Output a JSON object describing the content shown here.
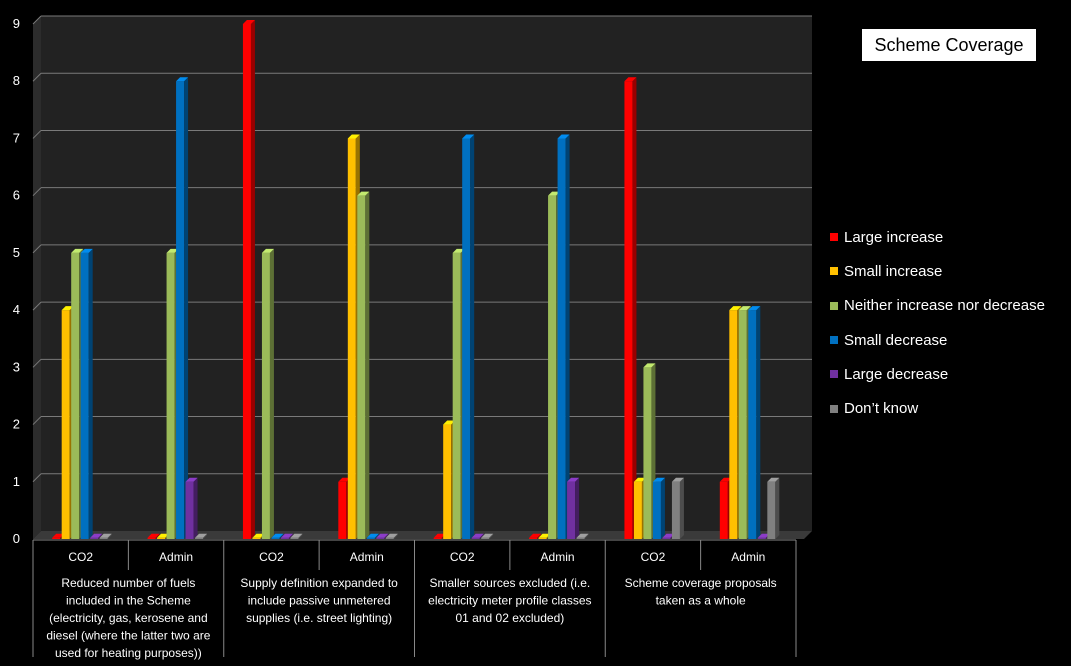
{
  "chart_data": {
    "type": "bar",
    "title": "Scheme Coverage",
    "ylim": [
      0,
      9
    ],
    "yticks": [
      "0",
      "1",
      "2",
      "3",
      "4",
      "5",
      "6",
      "7",
      "8",
      "9"
    ],
    "categories": [
      "CO2",
      "Admin",
      "CO2",
      "Admin",
      "CO2",
      "Admin",
      "CO2",
      "Admin"
    ],
    "groups": [
      "Reduced number of fuels included in the Scheme (electricity, gas, kerosene and diesel (where the latter two are used for heating purposes))",
      "Supply definition expanded to include passive unmetered supplies (i.e. street lighting)",
      "Smaller sources excluded (i.e. electricity meter profile classes 01 and 02 excluded)",
      "Scheme coverage proposals taken as a whole"
    ],
    "group_lines": [
      [
        "Reduced number of fuels",
        "included in the Scheme",
        "(electricity, gas, kerosene and",
        "diesel (where the latter two are",
        "used for heating purposes))"
      ],
      [
        "Supply definition expanded to",
        "include passive unmetered",
        "supplies (i.e. street lighting)"
      ],
      [
        "Smaller sources excluded (i.e.",
        "electricity meter profile classes",
        "01 and 02 excluded)"
      ],
      [
        "Scheme coverage proposals",
        "taken as a whole"
      ]
    ],
    "series": [
      {
        "name": "Large increase",
        "color": "#FF0000",
        "values": [
          0,
          0,
          9,
          1,
          0,
          0,
          8,
          1
        ]
      },
      {
        "name": "Small increase",
        "color": "#FFC000",
        "values": [
          4,
          0,
          0,
          7,
          2,
          0,
          1,
          4
        ]
      },
      {
        "name": "Neither increase nor decrease",
        "color": "#9BBB59",
        "values": [
          5,
          5,
          5,
          6,
          5,
          6,
          3,
          4
        ]
      },
      {
        "name": "Small decrease",
        "color": "#0070C0",
        "values": [
          5,
          8,
          0,
          0,
          7,
          7,
          1,
          4
        ]
      },
      {
        "name": "Large decrease",
        "color": "#7030A0",
        "values": [
          0,
          1,
          0,
          0,
          0,
          1,
          0,
          0
        ]
      },
      {
        "name": "Don’t know",
        "color": "#808080",
        "values": [
          0,
          0,
          0,
          0,
          0,
          0,
          1,
          1
        ]
      }
    ],
    "legend_position": "right",
    "grid": true
  }
}
